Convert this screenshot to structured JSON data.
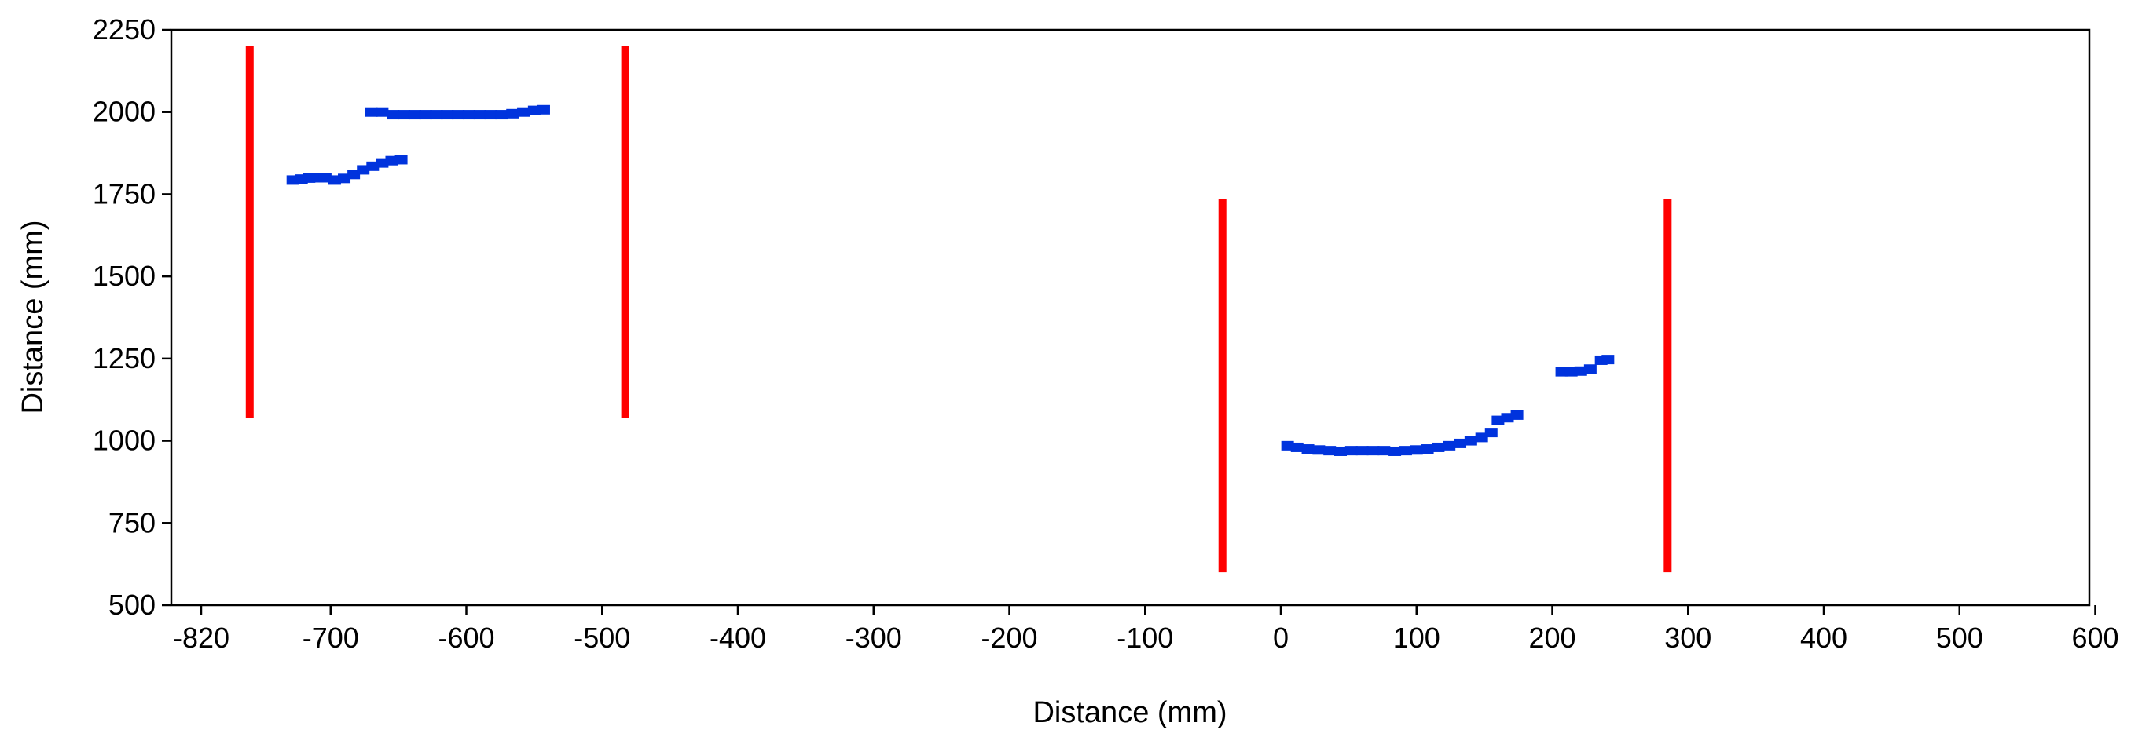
{
  "chart_data": {
    "type": "scatter",
    "title": "",
    "xlabel": "Distance (mm)",
    "ylabel": "Distance (mm)",
    "xlim": [
      -820,
      600
    ],
    "ylim": [
      500,
      2250
    ],
    "x_ticks": [
      -820,
      -700,
      -600,
      -500,
      -400,
      -300,
      -200,
      -100,
      0,
      100,
      200,
      300,
      400,
      500,
      600
    ],
    "x_tick_labels": [
      "-820",
      "-700",
      "-600",
      "-500",
      "-400",
      "-300",
      "-200",
      "-100",
      "0",
      "100",
      "200",
      "300",
      "400",
      "500",
      "600"
    ],
    "y_ticks": [
      500,
      750,
      1000,
      1250,
      1500,
      1750,
      2000,
      2250
    ],
    "y_tick_labels": [
      "500",
      "750",
      "1000",
      "1250",
      "1500",
      "1750",
      "2000",
      "2250"
    ],
    "grid": false,
    "legend": "none",
    "series": [
      {
        "color": "#0033dd",
        "marker": "square",
        "points": [
          [
            -735,
            1793
          ],
          [
            -727,
            1796
          ],
          [
            -720,
            1799
          ],
          [
            -712,
            1800
          ],
          [
            -705,
            1800
          ],
          [
            -697,
            1793
          ],
          [
            -690,
            1798
          ],
          [
            -683,
            1810
          ],
          [
            -676,
            1824
          ],
          [
            -669,
            1835
          ],
          [
            -662,
            1845
          ],
          [
            -655,
            1852
          ],
          [
            -648,
            1855
          ],
          [
            -670,
            2000
          ],
          [
            -662,
            2000
          ],
          [
            -654,
            1992
          ],
          [
            -646,
            1992
          ],
          [
            -638,
            1992
          ],
          [
            -630,
            1992
          ],
          [
            -622,
            1992
          ],
          [
            -614,
            1992
          ],
          [
            -606,
            1992
          ],
          [
            -598,
            1992
          ],
          [
            -590,
            1992
          ],
          [
            -582,
            1992
          ],
          [
            -574,
            1992
          ],
          [
            -566,
            1995
          ],
          [
            -558,
            2000
          ],
          [
            -550,
            2005
          ],
          [
            -543,
            2007
          ],
          [
            5,
            985
          ],
          [
            12,
            980
          ],
          [
            20,
            975
          ],
          [
            28,
            972
          ],
          [
            36,
            970
          ],
          [
            44,
            968
          ],
          [
            52,
            970
          ],
          [
            60,
            970
          ],
          [
            68,
            970
          ],
          [
            76,
            970
          ],
          [
            84,
            968
          ],
          [
            92,
            970
          ],
          [
            100,
            972
          ],
          [
            108,
            975
          ],
          [
            116,
            980
          ],
          [
            124,
            985
          ],
          [
            132,
            992
          ],
          [
            140,
            1000
          ],
          [
            148,
            1010
          ],
          [
            155,
            1025
          ],
          [
            160,
            1062
          ],
          [
            167,
            1070
          ],
          [
            174,
            1078
          ],
          [
            207,
            1210
          ],
          [
            214,
            1210
          ],
          [
            221,
            1212
          ],
          [
            228,
            1218
          ],
          [
            236,
            1245
          ],
          [
            241,
            1247
          ]
        ]
      },
      {
        "color": "#ff0000",
        "marker": "vertical-line",
        "segments": [
          {
            "x": -775,
            "y0": 1070,
            "y1": 2200
          },
          {
            "x": -483,
            "y0": 1070,
            "y1": 2200
          },
          {
            "x": -43,
            "y0": 600,
            "y1": 1735
          },
          {
            "x": 285,
            "y0": 600,
            "y1": 1735
          }
        ]
      }
    ]
  }
}
